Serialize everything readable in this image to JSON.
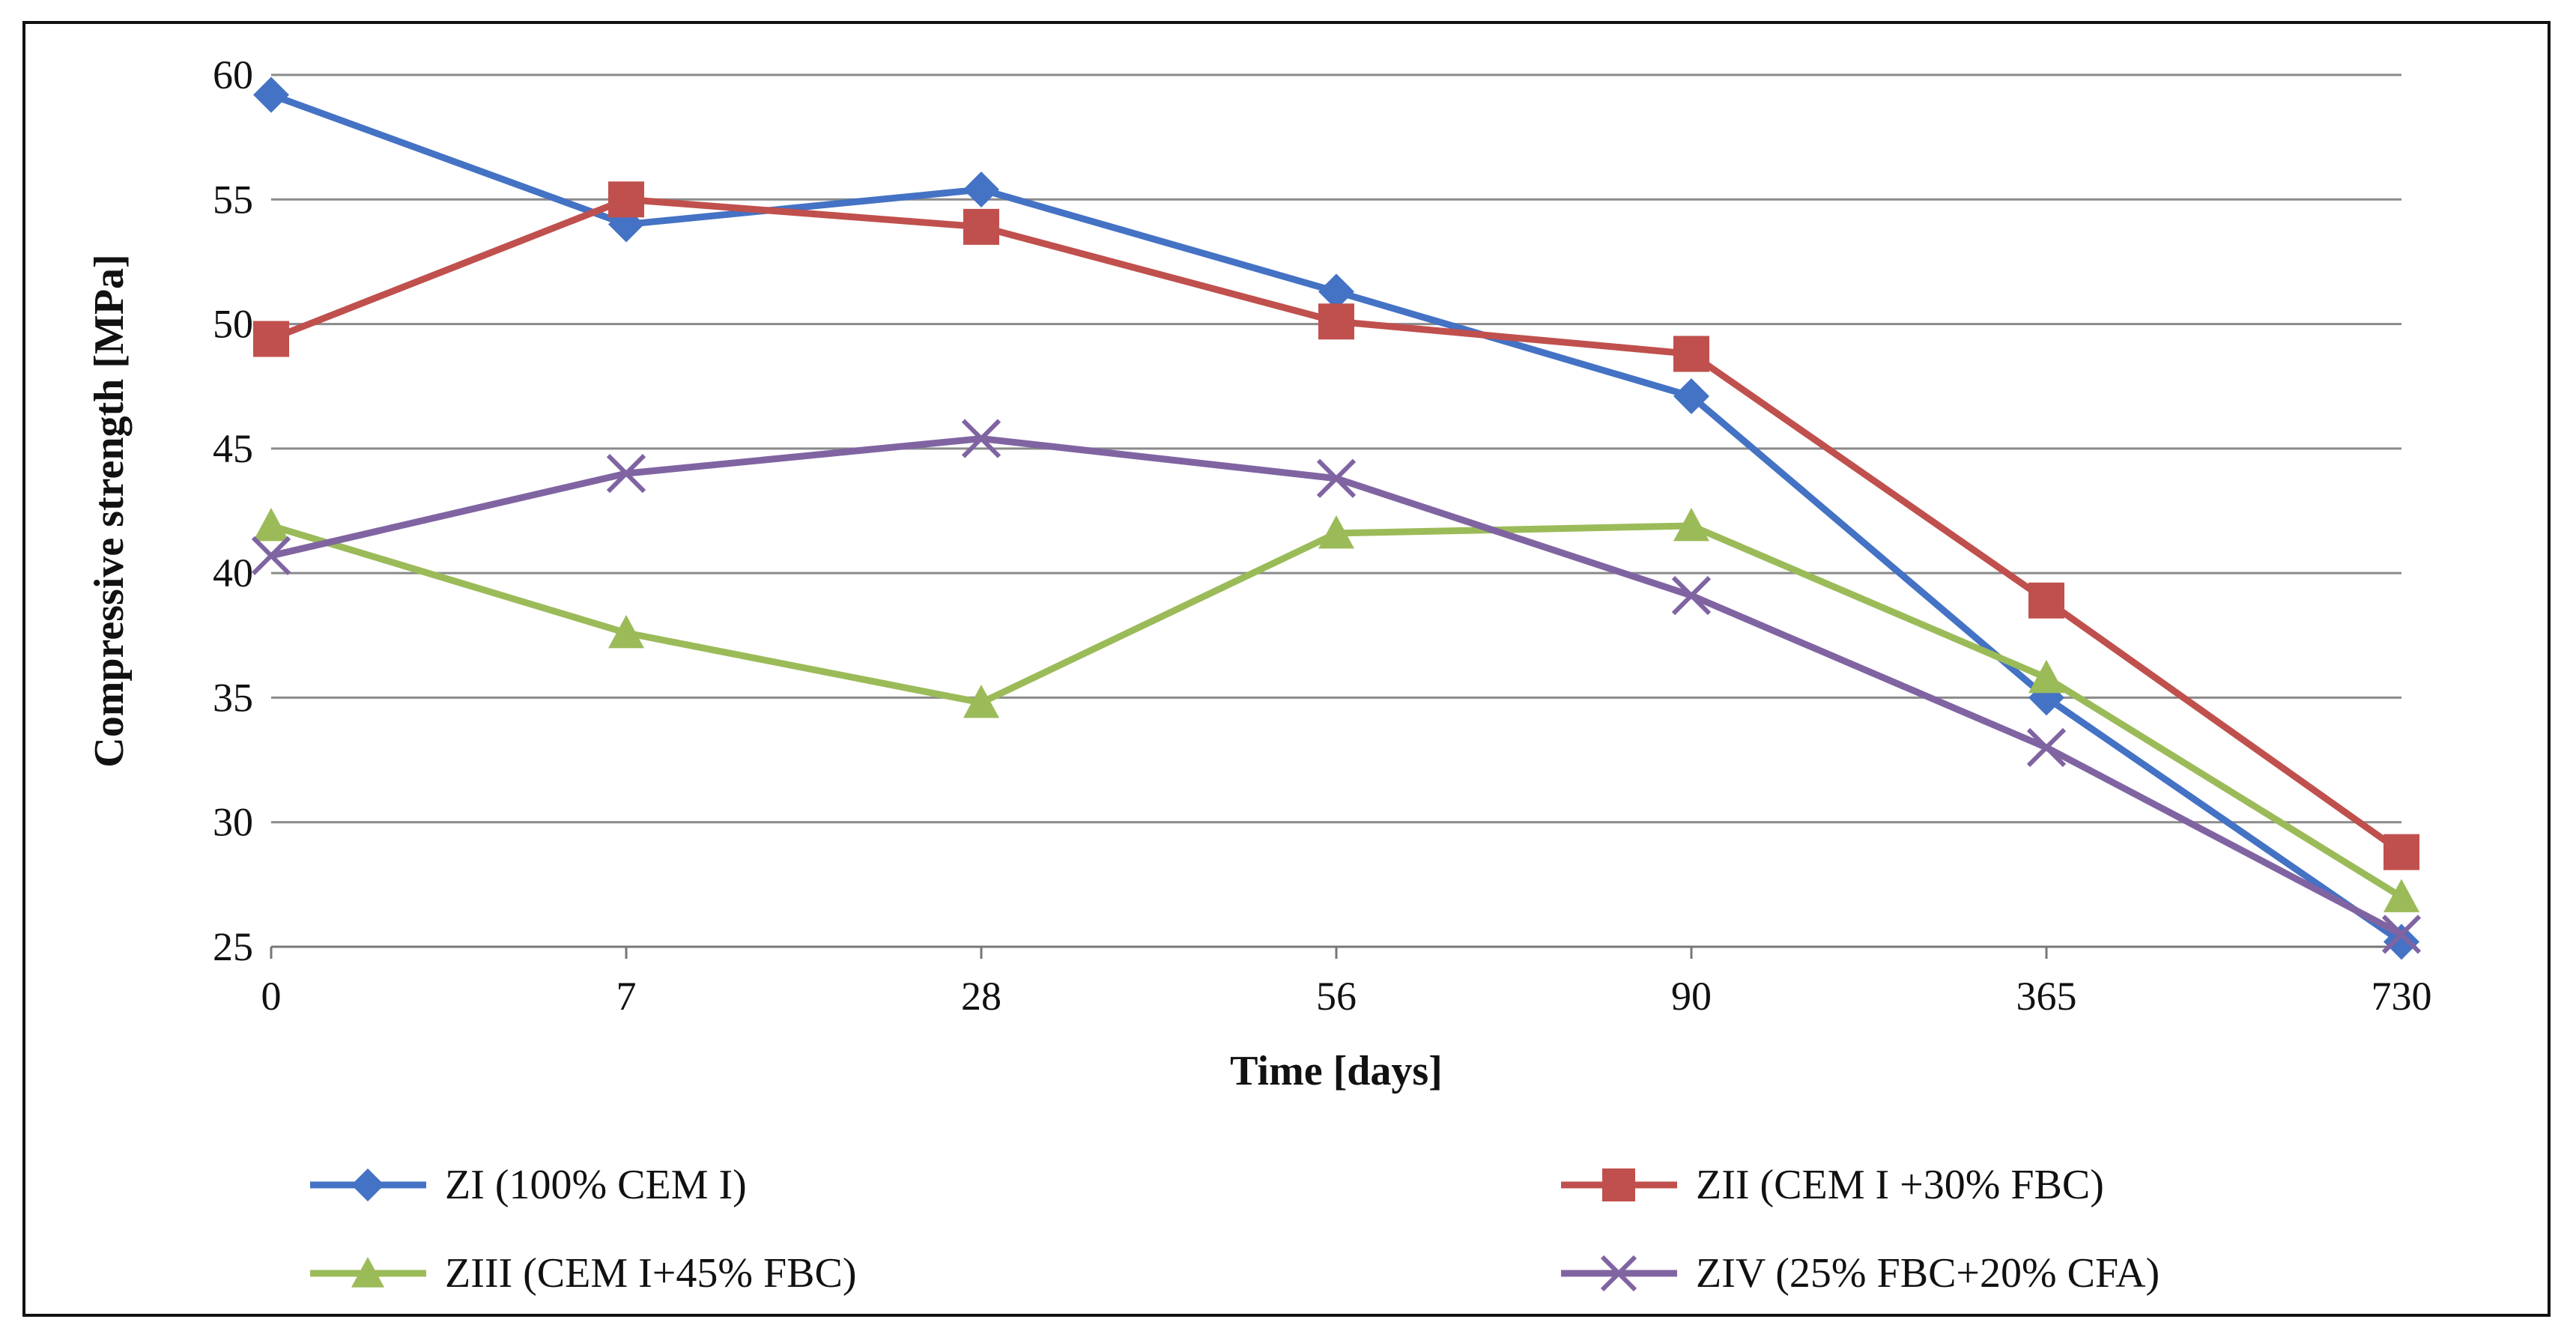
{
  "chart_data": {
    "type": "line",
    "title": "",
    "xlabel": "Time [days]",
    "ylabel": "Compressive strength [MPa]",
    "categories": [
      "0",
      "7",
      "28",
      "56",
      "90",
      "365",
      "730"
    ],
    "ylim": [
      25,
      60
    ],
    "yticks": [
      25,
      30,
      35,
      40,
      45,
      50,
      55,
      60
    ],
    "grid": true,
    "legend_position": "bottom",
    "series": [
      {
        "name": "ZI (100% CEM I)",
        "marker": "diamond",
        "color": "#4472C4",
        "values": [
          59.2,
          54.0,
          55.4,
          51.3,
          47.1,
          35.0,
          25.2
        ]
      },
      {
        "name": "ZII (CEM I +30% FBC)",
        "marker": "square",
        "color": "#C0504D",
        "values": [
          49.4,
          55.0,
          53.9,
          50.1,
          48.8,
          38.9,
          28.8
        ]
      },
      {
        "name": "ZIII (CEM I+45% FBC)",
        "marker": "triangle",
        "color": "#9BBB59",
        "values": [
          41.9,
          37.6,
          34.8,
          41.6,
          41.9,
          35.8,
          27.0
        ]
      },
      {
        "name": "ZIV (25% FBC+20% CFA)",
        "marker": "x",
        "color": "#8064A2",
        "values": [
          40.7,
          44.0,
          45.4,
          43.8,
          39.1,
          33.0,
          25.5
        ]
      }
    ]
  }
}
